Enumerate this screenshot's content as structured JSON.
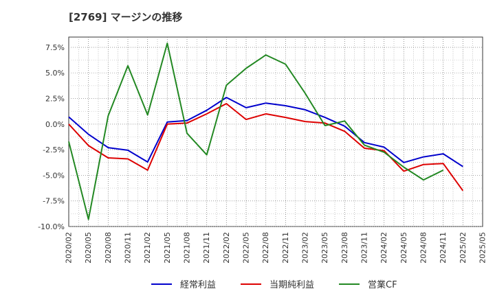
{
  "chart_data": {
    "type": "line",
    "title": "[2769]  マージンの推移",
    "x": [
      "2020/02",
      "2020/05",
      "2020/08",
      "2020/11",
      "2021/02",
      "2021/05",
      "2021/08",
      "2021/11",
      "2022/02",
      "2022/05",
      "2022/08",
      "2022/11",
      "2023/02",
      "2023/05",
      "2023/08",
      "2023/11",
      "2024/02",
      "2024/05",
      "2024/08",
      "2024/11",
      "2025/02",
      "2025/05"
    ],
    "y_ticks": [
      "7.5%",
      "5.0%",
      "2.5%",
      "0.0%",
      "-2.5%",
      "-5.0%",
      "-7.5%",
      "-10.0%"
    ],
    "ylim": [
      -10.0,
      8.5
    ],
    "grid": true,
    "legend_position": "bottom",
    "series": [
      {
        "name": "経常利益",
        "color": "#0000cc",
        "values": [
          0.7,
          -1.0,
          -2.3,
          -2.55,
          -3.7,
          0.2,
          0.35,
          1.35,
          2.6,
          1.6,
          2.05,
          1.8,
          1.4,
          0.65,
          -0.2,
          -1.8,
          -2.25,
          -3.75,
          -3.2,
          -2.9,
          -4.15,
          null
        ]
      },
      {
        "name": "当期純利益",
        "color": "#dd0000",
        "values": [
          0.0,
          -2.1,
          -3.3,
          -3.4,
          -4.5,
          0.0,
          0.1,
          1.0,
          2.0,
          0.45,
          1.0,
          0.65,
          0.25,
          0.1,
          -0.7,
          -2.35,
          -2.6,
          -4.6,
          -3.95,
          -3.85,
          -6.5,
          null
        ]
      },
      {
        "name": "営業CF",
        "color": "#228822",
        "values": [
          -1.7,
          -9.3,
          0.8,
          5.7,
          0.9,
          7.9,
          -0.9,
          -3.0,
          3.8,
          5.45,
          6.75,
          5.85,
          3.0,
          -0.15,
          0.3,
          -2.05,
          -2.75,
          -4.2,
          -5.45,
          -4.5,
          null,
          null
        ]
      }
    ]
  }
}
